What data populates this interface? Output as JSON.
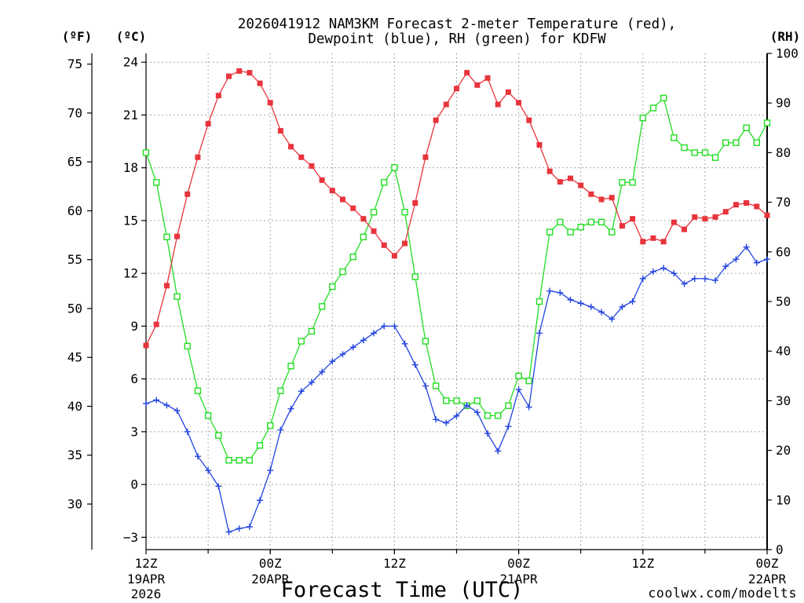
{
  "chart_data": {
    "type": "line",
    "title": [
      "2026041912 NAM3KM Forecast 2-meter Temperature (red),",
      "Dewpoint (blue), RH (green) for KDFW"
    ],
    "ylabel_f": "(ºF)",
    "ylabel_c": "(ºC)",
    "ylabel_rh": "(RH)",
    "xlabel": "Forecast Time (UTC)",
    "credit": "coolwx.com/modelts",
    "credit_color": "#e0505a",
    "xlim": [
      0,
      60
    ],
    "ylim_c": [
      -3.7,
      24.5
    ],
    "ylim_rh": [
      0,
      100
    ],
    "xgrid": [
      6,
      12,
      18,
      24,
      30,
      36,
      42,
      48,
      54
    ],
    "xticks": [
      {
        "value": 0,
        "time": "12Z",
        "date": "19APR",
        "year": "2026"
      },
      {
        "value": 12,
        "time": "00Z",
        "date": "20APR"
      },
      {
        "value": 24,
        "time": "12Z"
      },
      {
        "value": 36,
        "time": "00Z",
        "date": "21APR"
      },
      {
        "value": 48,
        "time": "12Z"
      },
      {
        "value": 60,
        "time": "00Z",
        "date": "22APR"
      }
    ],
    "yticks_c": [
      {
        "value": 24,
        "label": "24"
      },
      {
        "value": 21,
        "label": "21"
      },
      {
        "value": 18,
        "label": "18"
      },
      {
        "value": 15,
        "label": "15"
      },
      {
        "value": 12,
        "label": "12"
      },
      {
        "value": 9,
        "label": "9"
      },
      {
        "value": 6,
        "label": "6"
      },
      {
        "value": 3,
        "label": "3"
      },
      {
        "value": 0,
        "label": "0"
      },
      {
        "value": -3,
        "label": "−3"
      }
    ],
    "yticks_f": [
      {
        "value": 75,
        "label": "75"
      },
      {
        "value": 70,
        "label": "70"
      },
      {
        "value": 65,
        "label": "65"
      },
      {
        "value": 60,
        "label": "60"
      },
      {
        "value": 55,
        "label": "55"
      },
      {
        "value": 50,
        "label": "50"
      },
      {
        "value": 45,
        "label": "45"
      },
      {
        "value": 40,
        "label": "40"
      },
      {
        "value": 35,
        "label": "35"
      },
      {
        "value": 30,
        "label": "30"
      }
    ],
    "yticks_rh": [
      {
        "value": 100,
        "label": "100"
      },
      {
        "value": 90,
        "label": "90"
      },
      {
        "value": 80,
        "label": "80"
      },
      {
        "value": 70,
        "label": "70"
      },
      {
        "value": 60,
        "label": "60"
      },
      {
        "value": 50,
        "label": "50"
      },
      {
        "value": 40,
        "label": "40"
      },
      {
        "value": 30,
        "label": "30"
      },
      {
        "value": 20,
        "label": "20"
      },
      {
        "value": 10,
        "label": "10"
      },
      {
        "value": 0,
        "label": "0"
      }
    ],
    "x": [
      0,
      1,
      2,
      3,
      4,
      5,
      6,
      7,
      8,
      9,
      10,
      11,
      12,
      13,
      14,
      15,
      16,
      17,
      18,
      19,
      20,
      21,
      22,
      23,
      24,
      25,
      26,
      27,
      28,
      29,
      30,
      31,
      32,
      33,
      34,
      35,
      36,
      37,
      38,
      39,
      40,
      41,
      42,
      43,
      44,
      45,
      46,
      47,
      48,
      49,
      50,
      51,
      52,
      53,
      54,
      55,
      56,
      57,
      58,
      59,
      60
    ],
    "series": {
      "rh": {
        "color": "#22dd22",
        "values": [
          80,
          74,
          63,
          51,
          41,
          32,
          27,
          23,
          18,
          18,
          18,
          21,
          25,
          32,
          37,
          42,
          44,
          49,
          53,
          56,
          59,
          63,
          68,
          74,
          77,
          68,
          55,
          42,
          33,
          30,
          30,
          29,
          30,
          27,
          27,
          29,
          35,
          34,
          50,
          64,
          66,
          64,
          65,
          66,
          66,
          64,
          74,
          74,
          87,
          89,
          91,
          83,
          81,
          80,
          80,
          79,
          82,
          82,
          85,
          82,
          86
        ]
      },
      "dewpoint": {
        "color": "#2244e0",
        "values": [
          4.6,
          4.8,
          4.5,
          4.2,
          3.0,
          1.6,
          0.8,
          -0.1,
          -2.7,
          -2.5,
          -2.4,
          -0.9,
          0.8,
          3.1,
          4.3,
          5.3,
          5.8,
          6.4,
          7.0,
          7.4,
          7.8,
          8.2,
          8.6,
          9.0,
          9.0,
          8.0,
          6.8,
          5.6,
          3.7,
          3.5,
          3.9,
          4.5,
          4.1,
          2.9,
          1.9,
          3.3,
          5.4,
          4.4,
          8.6,
          11.0,
          10.9,
          10.5,
          10.3,
          10.1,
          9.8,
          9.4,
          10.1,
          10.4,
          11.7,
          12.1,
          12.3,
          12.0,
          11.4,
          11.7,
          11.7,
          11.6,
          12.4,
          12.8,
          13.5,
          12.6,
          12.8
        ]
      },
      "temperature": {
        "color": "#e8343c",
        "values": [
          7.9,
          9.1,
          11.3,
          14.1,
          16.5,
          18.6,
          20.5,
          22.1,
          23.2,
          23.5,
          23.4,
          22.8,
          21.7,
          20.1,
          19.2,
          18.6,
          18.1,
          17.3,
          16.7,
          16.2,
          15.7,
          15.1,
          14.4,
          13.6,
          13.0,
          13.7,
          16.0,
          18.6,
          20.7,
          21.6,
          22.5,
          23.4,
          22.7,
          23.1,
          21.6,
          22.3,
          21.7,
          20.7,
          19.3,
          17.8,
          17.2,
          17.4,
          17.0,
          16.5,
          16.2,
          16.3,
          14.7,
          15.1,
          13.8,
          14.0,
          13.8,
          14.9,
          14.5,
          15.2,
          15.1,
          15.2,
          15.5,
          15.9,
          16.0,
          15.8,
          15.3
        ]
      }
    }
  }
}
